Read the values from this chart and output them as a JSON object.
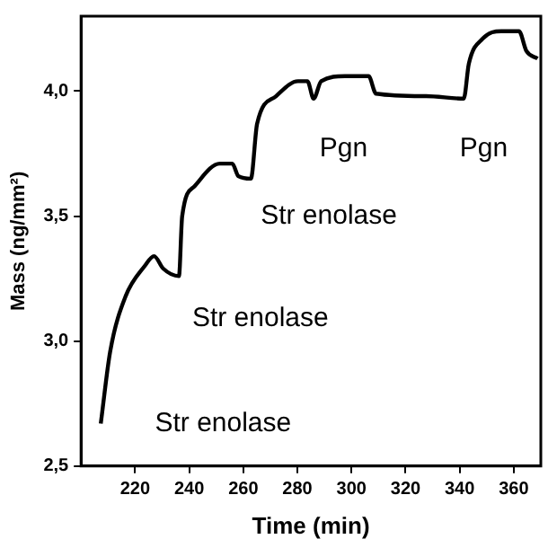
{
  "chart_data": {
    "type": "line",
    "xlabel": "Time (min)",
    "ylabel": "Mass (ng/mm²)",
    "x": [
      207.3,
      210.8,
      216.5,
      223.5,
      227,
      230.4,
      236.2,
      237.4,
      242,
      251.3,
      255.9,
      258.2,
      262.8,
      265.1,
      272.1,
      280.2,
      283.7,
      286,
      288.8,
      297.6,
      306.3,
      309.1,
      327.6,
      341.5,
      343.4,
      348.5,
      355.4,
      361.9,
      364.7,
      368.8
    ],
    "values": [
      2.67,
      2.96,
      3.18,
      3.3,
      3.34,
      3.29,
      3.26,
      3.5,
      3.62,
      3.71,
      3.71,
      3.66,
      3.65,
      3.87,
      3.98,
      4.04,
      4.04,
      3.97,
      4.04,
      4.06,
      4.06,
      3.99,
      3.98,
      3.97,
      4.11,
      4.21,
      4.24,
      4.24,
      4.16,
      4.13
    ],
    "color": "#000000",
    "marker": "none",
    "line_style": "solid",
    "grid": false,
    "legend": false,
    "xlim": [
      200,
      370
    ],
    "ylim": [
      2.5,
      4.3
    ],
    "xticks": [
      220,
      240,
      260,
      280,
      300,
      320,
      340,
      360
    ],
    "yticks": [
      {
        "value": 2.5,
        "label": "2,5"
      },
      {
        "value": 3,
        "label": "3,0"
      },
      {
        "value": 3.5,
        "label": "3,5"
      },
      {
        "value": 4,
        "label": "4,0"
      }
    ],
    "annotations": [
      "Str enolase",
      "Str enolase",
      "Str enolase",
      "Pgn",
      "Pgn"
    ]
  }
}
